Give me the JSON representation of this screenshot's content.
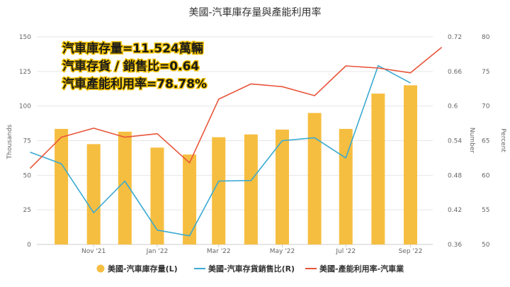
{
  "chart_data": {
    "type": "bar+line",
    "title": "美國-汽車庫存量與產能利用率",
    "x_ticks": [
      "Nov '21",
      "Jan '22",
      "Mar '22",
      "May '22",
      "Jul '22",
      "Sep '22"
    ],
    "categories": [
      "2021-10",
      "2021-11",
      "2021-12",
      "2022-01",
      "2022-02",
      "2022-03",
      "2022-04",
      "2022-05",
      "2022-06",
      "2022-07",
      "2022-08",
      "2022-09"
    ],
    "left_axis": {
      "label": "Thousands",
      "ticks": [
        "0",
        "25",
        "50",
        "75",
        "100",
        "125",
        "150"
      ],
      "range": [
        0,
        150
      ]
    },
    "right_axis_1": {
      "label": "Number",
      "ticks": [
        "0.36",
        "0.42",
        "0.48",
        "0.54",
        "0.6",
        "0.66",
        "0.72"
      ],
      "range": [
        0.36,
        0.72
      ]
    },
    "right_axis_2": {
      "label": "Percent",
      "ticks": [
        "50",
        "55",
        "60",
        "65",
        "70",
        "75",
        "80"
      ],
      "range": [
        50,
        80
      ]
    },
    "series": [
      {
        "name": "美國-汽車庫存量(L)",
        "type": "bar",
        "axis": "left",
        "color": "#F6BE40",
        "values": [
          83.5,
          72.5,
          81.5,
          70,
          65,
          77.5,
          79.5,
          83,
          95,
          83.5,
          109,
          115
        ]
      },
      {
        "name": "美國-汽車存貨銷售比(R)",
        "type": "line",
        "axis": "right_1",
        "color": "#3AAAD1",
        "x": [
          "2021-09-15",
          "2021-10",
          "2021-11",
          "2021-12",
          "2022-01",
          "2022-02",
          "2022-03",
          "2022-04",
          "2022-05",
          "2022-06",
          "2022-07",
          "2022-08",
          "2022-09"
        ],
        "values": [
          0.52,
          0.5,
          0.415,
          0.47,
          0.385,
          0.375,
          0.47,
          0.471,
          0.54,
          0.545,
          0.51,
          0.67,
          0.64
        ]
      },
      {
        "name": "美國-產能利用率-汽車業",
        "type": "line",
        "axis": "right_2",
        "color": "#E8553A",
        "x": [
          "2021-09-15",
          "2021-10",
          "2021-11",
          "2021-12",
          "2022-01",
          "2022-02",
          "2022-03",
          "2022-04",
          "2022-05",
          "2022-06",
          "2022-07",
          "2022-08",
          "2022-09",
          "2022-10"
        ],
        "values": [
          61,
          65.5,
          66.8,
          65.5,
          66,
          61.8,
          71,
          73.2,
          72.8,
          71.5,
          75.8,
          75.5,
          74.8,
          78.5
        ]
      }
    ],
    "annotations": [
      "汽車庫存量=11.524萬輛",
      "汽車存貨 / 銷售比=0.64",
      "汽車產能利用率=78.78%"
    ],
    "legend_position": "bottom",
    "grid": "horizontal"
  }
}
